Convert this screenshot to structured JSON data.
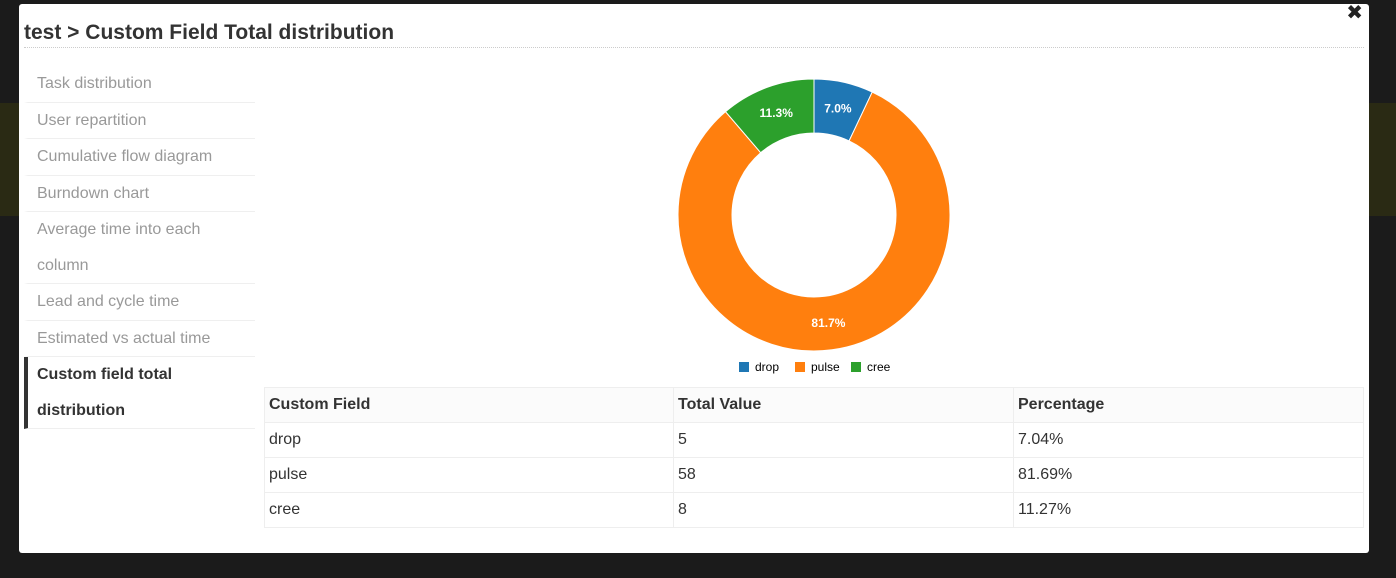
{
  "modal": {
    "title": "test > Custom Field Total distribution",
    "close_symbol": "✖"
  },
  "sidebar": {
    "items": [
      {
        "label": "Task distribution"
      },
      {
        "label": "User repartition"
      },
      {
        "label": "Cumulative flow diagram"
      },
      {
        "label": "Burndown chart"
      },
      {
        "label": "Average time into each column"
      },
      {
        "label": "Lead and cycle time"
      },
      {
        "label": "Estimated vs actual time"
      },
      {
        "label": "Custom field total distribution",
        "active": true
      }
    ]
  },
  "chart_data": {
    "type": "pie",
    "title": "",
    "categories": [
      "drop",
      "pulse",
      "cree"
    ],
    "values": [
      5,
      58,
      8
    ],
    "slice_labels": [
      "7.0%",
      "81.7%",
      "11.3%"
    ],
    "colors": [
      "#1f77b4",
      "#ff7f0e",
      "#2ca02c"
    ],
    "legend_position": "bottom"
  },
  "table": {
    "headers": [
      "Custom Field",
      "Total Value",
      "Percentage"
    ],
    "rows": [
      [
        "drop",
        "5",
        "7.04%"
      ],
      [
        "pulse",
        "58",
        "81.69%"
      ],
      [
        "cree",
        "8",
        "11.27%"
      ]
    ]
  }
}
